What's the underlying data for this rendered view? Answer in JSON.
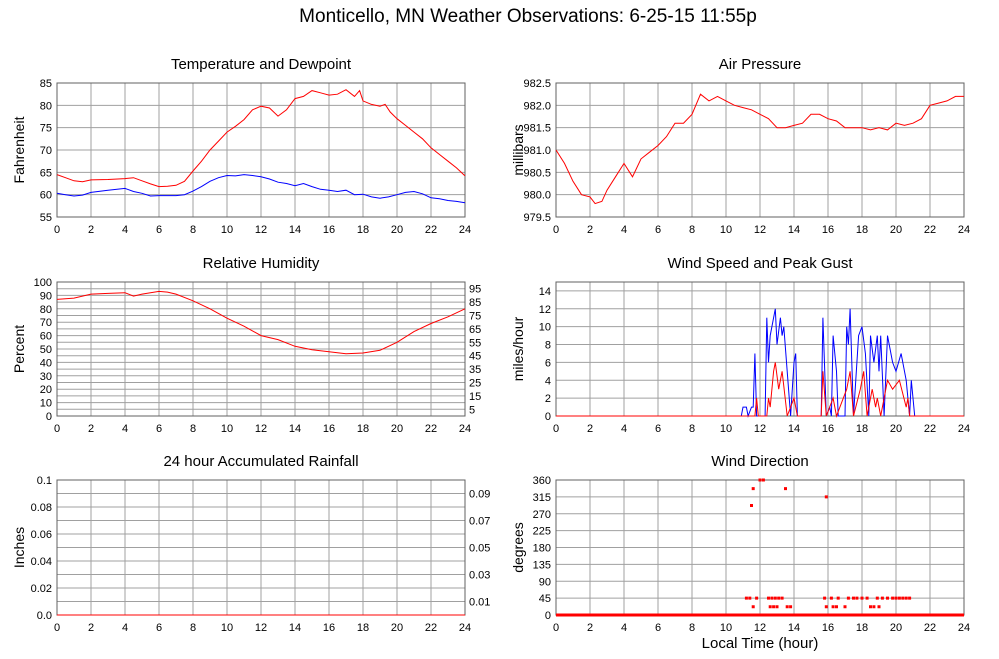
{
  "title": "Monticello, MN Weather Observations: 6-25-15 11:55p",
  "xlabel_bottom": "Local Time (hour)",
  "colors": {
    "red": "#ff0000",
    "blue": "#0000ff",
    "grid": "#a0a0a0"
  },
  "chart_data": [
    {
      "id": "temperature",
      "type": "line",
      "title": "Temperature and Dewpoint",
      "xlabel": "",
      "ylabel": "Fahrenheit",
      "xlim": [
        0,
        24
      ],
      "ylim": [
        55,
        85
      ],
      "xticks": [
        0,
        2,
        4,
        6,
        8,
        10,
        12,
        14,
        16,
        18,
        20,
        22,
        24
      ],
      "yticks": [
        55,
        60,
        65,
        70,
        75,
        80,
        85
      ],
      "grid": true,
      "series": [
        {
          "name": "Temperature",
          "color": "#ff0000",
          "x": [
            0,
            0.5,
            1,
            1.5,
            2,
            3,
            4,
            4.5,
            5,
            5.5,
            6,
            6.5,
            7,
            7.5,
            8,
            8.5,
            9,
            9.5,
            10,
            10.5,
            11,
            11.5,
            12,
            12.5,
            13,
            13.5,
            14,
            14.5,
            15,
            15.5,
            16,
            16.5,
            17,
            17.5,
            17.8,
            18,
            18.5,
            19,
            19.3,
            19.6,
            20,
            20.5,
            21,
            21.5,
            22,
            22.5,
            23,
            23.5,
            24
          ],
          "y": [
            64.5,
            63.8,
            63.1,
            62.9,
            63.3,
            63.4,
            63.6,
            63.8,
            63.1,
            62.4,
            61.8,
            61.9,
            62.1,
            63.0,
            65.3,
            67.5,
            70.0,
            72.0,
            74.0,
            75.3,
            76.8,
            79.0,
            79.8,
            79.4,
            77.6,
            79.0,
            81.5,
            82.0,
            83.3,
            82.8,
            82.3,
            82.5,
            83.5,
            82.0,
            83.3,
            81.0,
            80.2,
            79.8,
            80.2,
            78.5,
            77.0,
            75.5,
            74.0,
            72.5,
            70.5,
            69.0,
            67.5,
            66.0,
            64.2
          ]
        },
        {
          "name": "Dewpoint",
          "color": "#0000ff",
          "x": [
            0,
            0.5,
            1,
            1.5,
            2,
            3,
            4,
            4.5,
            5,
            5.5,
            6,
            7,
            7.5,
            8,
            8.5,
            9,
            9.5,
            10,
            10.5,
            11,
            11.5,
            12,
            12.5,
            13,
            13.5,
            14,
            14.5,
            15,
            15.5,
            16,
            16.5,
            17,
            17.5,
            18,
            18.5,
            19,
            19.5,
            20,
            20.5,
            21,
            21.5,
            22,
            22.5,
            23,
            23.5,
            24
          ],
          "y": [
            60.3,
            60.0,
            59.7,
            59.9,
            60.5,
            61.0,
            61.4,
            60.7,
            60.3,
            59.7,
            59.8,
            59.8,
            60.0,
            60.8,
            61.8,
            63.0,
            63.8,
            64.3,
            64.2,
            64.5,
            64.3,
            64.0,
            63.5,
            62.8,
            62.5,
            62.0,
            62.5,
            61.8,
            61.2,
            61.0,
            60.7,
            61.0,
            60.0,
            60.1,
            59.5,
            59.2,
            59.5,
            60.0,
            60.5,
            60.7,
            60.2,
            59.3,
            59.1,
            58.7,
            58.5,
            58.2
          ]
        }
      ]
    },
    {
      "id": "pressure",
      "type": "line",
      "title": "Air Pressure",
      "xlabel": "",
      "ylabel": "millibars",
      "xlim": [
        0,
        24
      ],
      "ylim": [
        979.5,
        982.5
      ],
      "xticks": [
        0,
        2,
        4,
        6,
        8,
        10,
        12,
        14,
        16,
        18,
        20,
        22,
        24
      ],
      "yticks": [
        979.5,
        980.0,
        980.5,
        981.0,
        981.5,
        982.0,
        982.5
      ],
      "grid": true,
      "series": [
        {
          "name": "Pressure",
          "color": "#ff0000",
          "x": [
            0,
            0.5,
            1,
            1.5,
            2,
            2.3,
            2.7,
            3,
            3.5,
            4,
            4.5,
            5,
            5.5,
            6,
            6.5,
            7,
            7.5,
            8,
            8.5,
            9,
            9.5,
            10,
            10.5,
            11,
            11.5,
            12,
            12.5,
            13,
            13.5,
            14,
            14.5,
            15,
            15.5,
            16,
            16.5,
            17,
            17.5,
            18,
            18.5,
            19,
            19.5,
            20,
            20.5,
            21,
            21.5,
            22,
            22.5,
            23,
            23.5,
            24
          ],
          "y": [
            981.0,
            980.7,
            980.3,
            980.0,
            979.95,
            979.8,
            979.85,
            980.1,
            980.4,
            980.7,
            980.4,
            980.8,
            980.95,
            981.1,
            981.3,
            981.6,
            981.6,
            981.8,
            982.25,
            982.1,
            982.2,
            982.1,
            982.0,
            981.95,
            981.9,
            981.8,
            981.7,
            981.5,
            981.5,
            981.55,
            981.6,
            981.8,
            981.8,
            981.7,
            981.65,
            981.5,
            981.5,
            981.5,
            981.45,
            981.5,
            981.45,
            981.6,
            981.55,
            981.6,
            981.7,
            982.0,
            982.05,
            982.1,
            982.2,
            982.2
          ]
        }
      ]
    },
    {
      "id": "humidity",
      "type": "line",
      "title": "Relative Humidity",
      "xlabel": "",
      "ylabel": "Percent",
      "xlim": [
        0,
        24
      ],
      "ylim": [
        0,
        100
      ],
      "xticks": [
        0,
        2,
        4,
        6,
        8,
        10,
        12,
        14,
        16,
        18,
        20,
        22,
        24
      ],
      "yticks": [
        0,
        5,
        10,
        15,
        20,
        25,
        30,
        35,
        40,
        45,
        50,
        55,
        60,
        65,
        70,
        75,
        80,
        85,
        90,
        95,
        100
      ],
      "grid": true,
      "series": [
        {
          "name": "Relative Humidity",
          "color": "#ff0000",
          "x": [
            0,
            1,
            2,
            3,
            4,
            4.5,
            5,
            6,
            6.5,
            7,
            8,
            9,
            10,
            11,
            12,
            13,
            14,
            15,
            16,
            17,
            18,
            19,
            20,
            21,
            22,
            23,
            24
          ],
          "y": [
            87,
            88,
            91,
            91.5,
            92,
            89.5,
            91,
            93,
            92.5,
            91,
            86,
            80,
            73,
            67,
            60,
            57,
            52,
            49.5,
            48,
            46.5,
            47,
            49,
            55,
            63,
            69,
            74,
            80
          ]
        }
      ]
    },
    {
      "id": "wind-speed",
      "type": "line",
      "title": "Wind Speed and Peak Gust",
      "xlabel": "",
      "ylabel": "miles/hour",
      "xlim": [
        0,
        24
      ],
      "ylim": [
        0,
        15
      ],
      "xticks": [
        0,
        2,
        4,
        6,
        8,
        10,
        12,
        14,
        16,
        18,
        20,
        22,
        24
      ],
      "yticks": [
        0,
        2,
        4,
        6,
        8,
        10,
        12,
        14
      ],
      "grid": true,
      "series": [
        {
          "name": "Peak Gust",
          "color": "#0000ff",
          "x": [
            0,
            10.9,
            11.0,
            11.2,
            11.3,
            11.5,
            11.6,
            11.7,
            11.8,
            12.3,
            12.4,
            12.5,
            12.6,
            12.9,
            13.0,
            13.2,
            13.3,
            13.4,
            13.8,
            14.0,
            14.1,
            14.2,
            15.6,
            15.7,
            15.9,
            16.1,
            16.2,
            16.3,
            16.5,
            16.6,
            17.0,
            17.1,
            17.2,
            17.3,
            17.5,
            17.8,
            18.0,
            18.2,
            18.4,
            18.5,
            18.7,
            18.9,
            19.0,
            19.1,
            19.3,
            19.5,
            19.8,
            20.0,
            20.3,
            20.6,
            20.8,
            20.9,
            21.1,
            24
          ],
          "y": [
            0,
            0,
            1,
            1,
            0,
            1,
            1,
            7,
            0,
            0,
            11,
            6,
            9,
            12,
            8,
            11,
            9,
            10,
            0,
            6,
            7,
            0,
            0,
            11,
            0,
            1,
            0,
            9,
            5,
            0,
            0,
            10,
            8,
            12,
            0,
            9,
            10,
            7,
            0,
            9,
            6,
            9,
            5,
            9,
            0,
            9,
            6,
            5,
            7,
            4,
            0,
            4,
            0,
            0
          ]
        },
        {
          "name": "Wind Speed",
          "color": "#ff0000",
          "x": [
            0,
            11.7,
            11.8,
            11.9,
            12.4,
            12.5,
            12.6,
            12.8,
            12.9,
            13.1,
            13.3,
            13.6,
            14.0,
            14.2,
            15.6,
            15.7,
            15.9,
            16.3,
            16.5,
            17.1,
            17.2,
            17.3,
            17.5,
            17.9,
            18.1,
            18.3,
            18.6,
            18.8,
            18.9,
            19.1,
            19.5,
            19.8,
            20.2,
            20.6,
            20.7,
            20.8,
            24
          ],
          "y": [
            0,
            0,
            2,
            0,
            0,
            2,
            1,
            5,
            6,
            3,
            5,
            0,
            2,
            0,
            0,
            5,
            0,
            2,
            0,
            3,
            4,
            5,
            0,
            3,
            5,
            0,
            3,
            1,
            2,
            0,
            4,
            3,
            4,
            1,
            2,
            0,
            0
          ]
        }
      ]
    },
    {
      "id": "rainfall",
      "type": "line",
      "title": "24 hour Accumulated Rainfall",
      "xlabel": "",
      "ylabel": "Inches",
      "xlim": [
        0,
        24
      ],
      "ylim": [
        0,
        0.1
      ],
      "xticks": [
        0,
        2,
        4,
        6,
        8,
        10,
        12,
        14,
        16,
        18,
        20,
        22,
        24
      ],
      "yticks": [
        0.0,
        0.01,
        0.02,
        0.03,
        0.04,
        0.05,
        0.06,
        0.07,
        0.08,
        0.09,
        0.1
      ],
      "ytick_labels": [
        "0.0",
        "0.01",
        "0.02",
        "0.03",
        "0.04",
        "0.05",
        "0.06",
        "0.07",
        "0.08",
        "0.09",
        "0.1"
      ],
      "grid": true,
      "series": [
        {
          "name": "Rainfall",
          "color": "#ff0000",
          "x": [
            0,
            24
          ],
          "y": [
            0,
            0
          ]
        }
      ]
    },
    {
      "id": "wind-direction",
      "type": "scatter",
      "title": "Wind Direction",
      "xlabel": "Local Time (hour)",
      "ylabel": "degrees",
      "xlim": [
        0,
        24
      ],
      "ylim": [
        0,
        360
      ],
      "xticks": [
        0,
        2,
        4,
        6,
        8,
        10,
        12,
        14,
        16,
        18,
        20,
        22,
        24
      ],
      "yticks": [
        0,
        45,
        90,
        135,
        180,
        225,
        270,
        315,
        360
      ],
      "grid": true,
      "series": [
        {
          "name": "Wind Direction",
          "color": "#ff0000",
          "calm_range": [
            0,
            24
          ],
          "x": [
            11.2,
            11.4,
            11.8,
            12.5,
            12.7,
            12.9,
            13.1,
            13.3,
            15.8,
            16.2,
            16.6,
            17.2,
            17.5,
            17.7,
            18.0,
            18.3,
            18.9,
            19.2,
            19.5,
            19.8,
            20.0,
            20.2,
            20.4,
            20.6,
            20.8,
            11.6,
            12.6,
            12.8,
            13.0,
            13.6,
            13.8,
            15.9,
            16.3,
            16.5,
            17.0,
            18.5,
            18.7,
            19.0,
            11.5,
            11.6,
            12.0,
            12.2,
            13.5,
            15.9
          ],
          "y": [
            45,
            45,
            45,
            45,
            45,
            45,
            45,
            45,
            45,
            45,
            45,
            45,
            45,
            45,
            45,
            45,
            45,
            45,
            45,
            45,
            45,
            45,
            45,
            45,
            45,
            22,
            22,
            22,
            22,
            22,
            22,
            22,
            22,
            22,
            22,
            22,
            22,
            22,
            292,
            337,
            360,
            360,
            337,
            315
          ]
        }
      ]
    }
  ]
}
